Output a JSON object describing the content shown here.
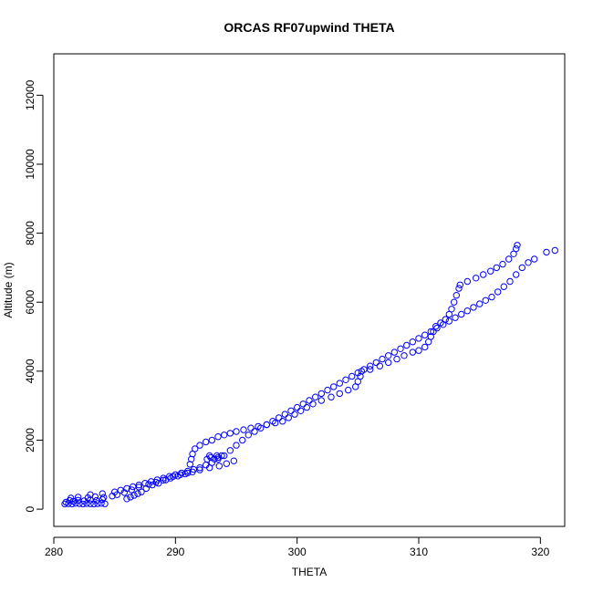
{
  "chart_data": {
    "type": "scatter",
    "title": "ORCAS RF07upwind THETA",
    "xlabel": "THETA",
    "ylabel": "Altitude (m)",
    "xlim": [
      280,
      322
    ],
    "ylim": [
      -500,
      13200
    ],
    "x_ticks": [
      280,
      290,
      300,
      310,
      320
    ],
    "y_ticks": [
      0,
      2000,
      4000,
      6000,
      8000,
      10000,
      12000
    ],
    "marker": "open-circle",
    "color": "#0000ff",
    "series": [
      {
        "points": [
          [
            280.9,
            150
          ],
          [
            281.2,
            160
          ],
          [
            281.5,
            150
          ],
          [
            281.8,
            170
          ],
          [
            282.1,
            160
          ],
          [
            282.4,
            150
          ],
          [
            282.7,
            165
          ],
          [
            283.0,
            155
          ],
          [
            283.3,
            150
          ],
          [
            283.6,
            160
          ],
          [
            283.9,
            170
          ],
          [
            284.2,
            155
          ],
          [
            281.0,
            200
          ],
          [
            281.3,
            250
          ],
          [
            281.6,
            230
          ],
          [
            282.0,
            260
          ],
          [
            282.5,
            240
          ],
          [
            283.0,
            270
          ],
          [
            283.5,
            250
          ],
          [
            284.0,
            280
          ],
          [
            281.4,
            320
          ],
          [
            282.0,
            350
          ],
          [
            282.8,
            330
          ],
          [
            283.4,
            360
          ],
          [
            284.1,
            340
          ],
          [
            284.8,
            380
          ],
          [
            283.0,
            420
          ],
          [
            284.0,
            450
          ],
          [
            285.0,
            500
          ],
          [
            285.5,
            550
          ],
          [
            286.0,
            600
          ],
          [
            286.5,
            650
          ],
          [
            287.0,
            700
          ],
          [
            287.5,
            750
          ],
          [
            288.0,
            800
          ],
          [
            288.5,
            850
          ],
          [
            289.0,
            900
          ],
          [
            289.5,
            950
          ],
          [
            290.0,
            1000
          ],
          [
            290.5,
            1050
          ],
          [
            291.0,
            1100
          ],
          [
            291.5,
            1150
          ],
          [
            292.0,
            1200
          ],
          [
            292.5,
            1280
          ],
          [
            293.0,
            1350
          ],
          [
            293.5,
            1450
          ],
          [
            294.0,
            1550
          ],
          [
            294.5,
            1700
          ],
          [
            295.0,
            1850
          ],
          [
            295.5,
            2000
          ],
          [
            296.0,
            2150
          ],
          [
            296.5,
            2250
          ],
          [
            297.0,
            2350
          ],
          [
            297.5,
            2450
          ],
          [
            298.0,
            2550
          ],
          [
            298.5,
            2650
          ],
          [
            299.0,
            2750
          ],
          [
            299.5,
            2850
          ],
          [
            300.0,
            2950
          ],
          [
            300.5,
            3050
          ],
          [
            301.0,
            3150
          ],
          [
            301.5,
            3250
          ],
          [
            302.0,
            3350
          ],
          [
            302.5,
            3450
          ],
          [
            303.0,
            3550
          ],
          [
            303.5,
            3650
          ],
          [
            304.0,
            3750
          ],
          [
            304.5,
            3850
          ],
          [
            305.0,
            3950
          ],
          [
            305.5,
            4050
          ],
          [
            306.0,
            4150
          ],
          [
            306.5,
            4250
          ],
          [
            307.0,
            4350
          ],
          [
            307.5,
            4450
          ],
          [
            308.0,
            4550
          ],
          [
            308.5,
            4650
          ],
          [
            309.0,
            4750
          ],
          [
            309.5,
            4850
          ],
          [
            310.0,
            4950
          ],
          [
            310.5,
            5050
          ],
          [
            311.0,
            5150
          ],
          [
            311.5,
            5250
          ],
          [
            312.0,
            5350
          ],
          [
            312.5,
            5450
          ],
          [
            313.0,
            5550
          ],
          [
            313.5,
            5650
          ],
          [
            314.0,
            5750
          ],
          [
            314.5,
            5850
          ],
          [
            315.0,
            5950
          ],
          [
            315.5,
            6050
          ],
          [
            316.0,
            6150
          ],
          [
            316.5,
            6300
          ],
          [
            317.0,
            6450
          ],
          [
            317.5,
            6600
          ],
          [
            318.0,
            6800
          ],
          [
            318.5,
            7000
          ],
          [
            319.0,
            7150
          ],
          [
            319.5,
            7250
          ],
          [
            320.5,
            7450
          ],
          [
            321.2,
            7500
          ],
          [
            286.0,
            300
          ],
          [
            286.3,
            350
          ],
          [
            286.6,
            400
          ],
          [
            286.9,
            450
          ],
          [
            287.2,
            500
          ],
          [
            287.6,
            600
          ],
          [
            288.1,
            700
          ],
          [
            288.6,
            750
          ],
          [
            289.2,
            850
          ],
          [
            289.8,
            950
          ],
          [
            290.4,
            1000
          ],
          [
            291.0,
            1050
          ],
          [
            291.2,
            1300
          ],
          [
            291.3,
            1450
          ],
          [
            291.4,
            1600
          ],
          [
            291.6,
            1750
          ],
          [
            292.0,
            1850
          ],
          [
            292.5,
            1950
          ],
          [
            293.0,
            2000
          ],
          [
            293.5,
            2100
          ],
          [
            294.0,
            2150
          ],
          [
            294.5,
            2200
          ],
          [
            295.0,
            2250
          ],
          [
            295.6,
            2300
          ],
          [
            296.2,
            2350
          ],
          [
            296.8,
            2400
          ],
          [
            297.5,
            2450
          ],
          [
            298.2,
            2500
          ],
          [
            298.8,
            2550
          ],
          [
            299.3,
            2650
          ],
          [
            299.8,
            2750
          ],
          [
            300.3,
            2850
          ],
          [
            300.8,
            2950
          ],
          [
            301.3,
            3050
          ],
          [
            302.0,
            3150
          ],
          [
            302.8,
            3250
          ],
          [
            303.5,
            3350
          ],
          [
            304.2,
            3450
          ],
          [
            304.8,
            3550
          ],
          [
            305.0,
            3700
          ],
          [
            305.2,
            3850
          ],
          [
            305.3,
            4000
          ],
          [
            306.0,
            4050
          ],
          [
            306.8,
            4150
          ],
          [
            307.5,
            4250
          ],
          [
            308.2,
            4350
          ],
          [
            308.8,
            4450
          ],
          [
            309.5,
            4550
          ],
          [
            310.0,
            4600
          ],
          [
            310.5,
            4700
          ],
          [
            310.8,
            4850
          ],
          [
            311.0,
            5000
          ],
          [
            311.2,
            5150
          ],
          [
            311.4,
            5300
          ],
          [
            311.8,
            5400
          ],
          [
            312.2,
            5500
          ],
          [
            312.5,
            5650
          ],
          [
            312.7,
            5800
          ],
          [
            312.9,
            6000
          ],
          [
            313.1,
            6200
          ],
          [
            313.3,
            6400
          ],
          [
            313.4,
            6500
          ],
          [
            314.0,
            6600
          ],
          [
            314.7,
            6700
          ],
          [
            315.3,
            6800
          ],
          [
            315.9,
            6900
          ],
          [
            316.4,
            7000
          ],
          [
            316.9,
            7100
          ],
          [
            317.4,
            7250
          ],
          [
            317.8,
            7400
          ],
          [
            318.0,
            7550
          ],
          [
            318.1,
            7650
          ],
          [
            292.6,
            1450
          ],
          [
            292.9,
            1500
          ],
          [
            293.2,
            1450
          ],
          [
            293.5,
            1500
          ],
          [
            293.8,
            1550
          ],
          [
            292.8,
            1550
          ],
          [
            293.4,
            1550
          ],
          [
            285.2,
            420
          ],
          [
            285.8,
            480
          ],
          [
            286.4,
            560
          ],
          [
            287.0,
            640
          ],
          [
            287.8,
            720
          ],
          [
            288.4,
            780
          ],
          [
            289.0,
            840
          ],
          [
            289.6,
            900
          ],
          [
            290.2,
            960
          ],
          [
            290.8,
            1020
          ],
          [
            291.4,
            1080
          ],
          [
            292.0,
            1140
          ],
          [
            292.8,
            1200
          ],
          [
            293.6,
            1250
          ],
          [
            294.2,
            1320
          ],
          [
            294.8,
            1400
          ]
        ]
      }
    ]
  }
}
